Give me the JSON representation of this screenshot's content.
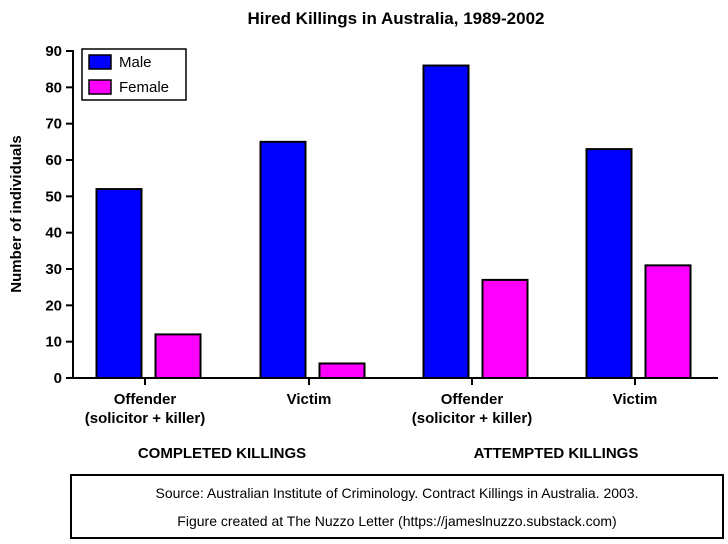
{
  "chart_data": {
    "type": "bar",
    "title": "Hired Killings in Australia, 1989-2002",
    "xlabel": "",
    "ylabel": "Number of individuals",
    "ylim": [
      0,
      90
    ],
    "yticks": [
      "0",
      "10",
      "20",
      "30",
      "40",
      "50",
      "60",
      "70",
      "80",
      "90"
    ],
    "categories": [
      [
        "Offender",
        "(solicitor + killer)"
      ],
      [
        "Victim"
      ],
      [
        "Offender",
        "(solicitor + killer)"
      ],
      [
        "Victim"
      ]
    ],
    "groups": [
      "COMPLETED KILLINGS",
      "ATTEMPTED KILLINGS"
    ],
    "series": [
      {
        "name": "Male",
        "color": "#0000ff",
        "values": [
          52,
          65,
          86,
          63
        ]
      },
      {
        "name": "Female",
        "color": "#ff00ff",
        "values": [
          12,
          4,
          27,
          31
        ]
      }
    ],
    "legend_position": "top-left",
    "grid": false
  },
  "source": {
    "line1": "Source: Australian Institute of Criminology. Contract Killings in Australia. 2003.",
    "line2": "Figure created at The Nuzzo Letter (https://jameslnuzzo.substack.com)"
  }
}
